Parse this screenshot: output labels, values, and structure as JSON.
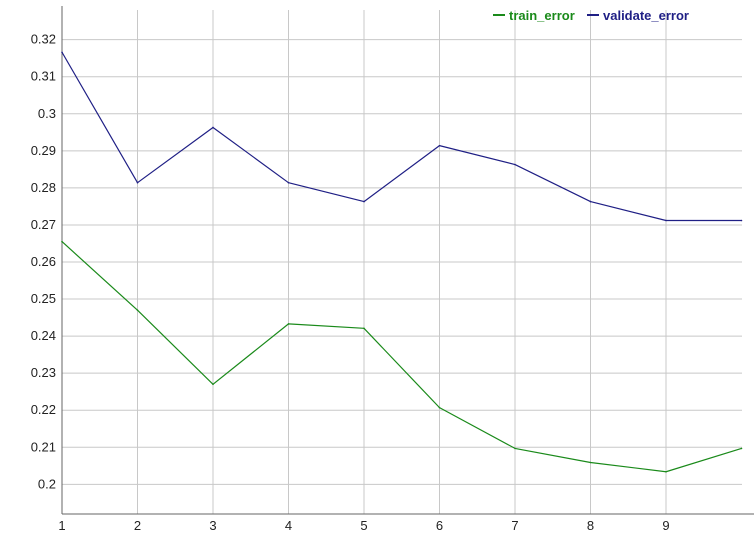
{
  "chart_data": {
    "type": "line",
    "title": "",
    "xlabel": "",
    "ylabel": "",
    "x": [
      1,
      2,
      3,
      4,
      5,
      6,
      7,
      8,
      9,
      10
    ],
    "x_tick_labels": [
      "1",
      "2",
      "3",
      "4",
      "5",
      "6",
      "7",
      "8",
      "9"
    ],
    "y_tick_values": [
      0.2,
      0.21,
      0.22,
      0.23,
      0.24,
      0.25,
      0.26,
      0.27,
      0.28,
      0.29,
      0.3,
      0.31,
      0.32
    ],
    "y_tick_labels": [
      "0.2",
      "0.21",
      "0.22",
      "0.23",
      "0.24",
      "0.25",
      "0.26",
      "0.27",
      "0.28",
      "0.29",
      "0.3",
      "0.31",
      "0.32"
    ],
    "xlim": [
      1,
      10
    ],
    "ylim": [
      0.192,
      0.328
    ],
    "grid": true,
    "legend_position": "top-right",
    "series": [
      {
        "name": "train_error",
        "color": "#1a8a1a",
        "values": [
          0.2655,
          0.247,
          0.227,
          0.2433,
          0.2421,
          0.2207,
          0.2097,
          0.2059,
          0.2034,
          0.2097
        ]
      },
      {
        "name": "validate_error",
        "color": "#1f1f85",
        "values": [
          0.3166,
          0.2814,
          0.2963,
          0.2814,
          0.2763,
          0.2914,
          0.2863,
          0.2763,
          0.2712,
          0.2712
        ]
      }
    ]
  }
}
